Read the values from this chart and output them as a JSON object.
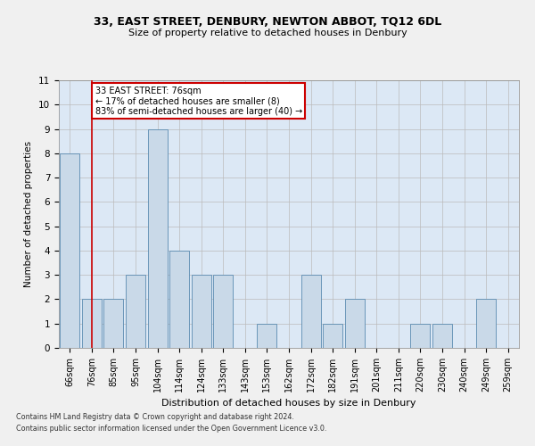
{
  "title1": "33, EAST STREET, DENBURY, NEWTON ABBOT, TQ12 6DL",
  "title2": "Size of property relative to detached houses in Denbury",
  "xlabel": "Distribution of detached houses by size in Denbury",
  "ylabel": "Number of detached properties",
  "categories": [
    "66sqm",
    "76sqm",
    "85sqm",
    "95sqm",
    "104sqm",
    "114sqm",
    "124sqm",
    "133sqm",
    "143sqm",
    "153sqm",
    "162sqm",
    "172sqm",
    "182sqm",
    "191sqm",
    "201sqm",
    "211sqm",
    "220sqm",
    "230sqm",
    "240sqm",
    "249sqm",
    "259sqm"
  ],
  "values": [
    8,
    2,
    2,
    3,
    9,
    4,
    3,
    3,
    0,
    1,
    0,
    3,
    1,
    2,
    0,
    0,
    1,
    1,
    0,
    2,
    0
  ],
  "bar_color": "#c9d9e8",
  "bar_edge_color": "#5a8ab0",
  "highlight_index": 1,
  "highlight_line_color": "#cc0000",
  "ylim": [
    0,
    11
  ],
  "yticks": [
    0,
    1,
    2,
    3,
    4,
    5,
    6,
    7,
    8,
    9,
    10,
    11
  ],
  "annotation_text": "33 EAST STREET: 76sqm\n← 17% of detached houses are smaller (8)\n83% of semi-detached houses are larger (40) →",
  "annotation_box_color": "#ffffff",
  "annotation_box_edge_color": "#cc0000",
  "footer1": "Contains HM Land Registry data © Crown copyright and database right 2024.",
  "footer2": "Contains public sector information licensed under the Open Government Licence v3.0.",
  "grid_color": "#bbbbbb",
  "background_color": "#dce8f5",
  "fig_background": "#f0f0f0"
}
